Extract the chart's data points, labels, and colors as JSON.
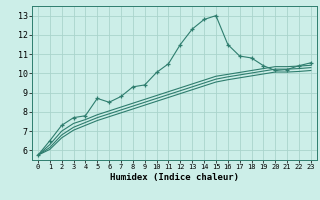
{
  "title": "",
  "xlabel": "Humidex (Indice chaleur)",
  "bg_color": "#cceee8",
  "grid_color": "#aad4cc",
  "line_color": "#2e7d6e",
  "xlim": [
    -0.5,
    23.5
  ],
  "ylim": [
    5.5,
    13.5
  ],
  "xticks": [
    0,
    1,
    2,
    3,
    4,
    5,
    6,
    7,
    8,
    9,
    10,
    11,
    12,
    13,
    14,
    15,
    16,
    17,
    18,
    19,
    20,
    21,
    22,
    23
  ],
  "yticks": [
    6,
    7,
    8,
    9,
    10,
    11,
    12,
    13
  ],
  "main_x": [
    0,
    1,
    2,
    3,
    4,
    5,
    6,
    7,
    8,
    9,
    10,
    11,
    12,
    13,
    14,
    15,
    16,
    17,
    18,
    19,
    20,
    21,
    22,
    23
  ],
  "main_y": [
    5.75,
    6.5,
    7.3,
    7.7,
    7.8,
    8.7,
    8.5,
    8.8,
    9.3,
    9.4,
    10.05,
    10.5,
    11.5,
    12.3,
    12.8,
    13.0,
    11.5,
    10.9,
    10.8,
    10.4,
    10.15,
    10.2,
    10.4,
    10.55
  ],
  "line2_x": [
    0,
    1,
    2,
    3,
    4,
    5,
    6,
    7,
    8,
    9,
    10,
    11,
    12,
    13,
    14,
    15,
    16,
    17,
    18,
    19,
    20,
    21,
    22,
    23
  ],
  "line2_y": [
    5.75,
    6.3,
    7.0,
    7.4,
    7.6,
    7.85,
    8.05,
    8.25,
    8.45,
    8.65,
    8.85,
    9.05,
    9.25,
    9.45,
    9.65,
    9.85,
    9.95,
    10.05,
    10.15,
    10.25,
    10.35,
    10.35,
    10.38,
    10.42
  ],
  "line3_x": [
    0,
    1,
    2,
    3,
    4,
    5,
    6,
    7,
    8,
    9,
    10,
    11,
    12,
    13,
    14,
    15,
    16,
    17,
    18,
    19,
    20,
    21,
    22,
    23
  ],
  "line3_y": [
    5.75,
    6.15,
    6.8,
    7.2,
    7.45,
    7.7,
    7.9,
    8.1,
    8.3,
    8.5,
    8.7,
    8.9,
    9.1,
    9.3,
    9.5,
    9.7,
    9.82,
    9.92,
    10.02,
    10.12,
    10.22,
    10.22,
    10.25,
    10.3
  ],
  "line4_x": [
    0,
    1,
    2,
    3,
    4,
    5,
    6,
    7,
    8,
    9,
    10,
    11,
    12,
    13,
    14,
    15,
    16,
    17,
    18,
    19,
    20,
    21,
    22,
    23
  ],
  "line4_y": [
    5.75,
    6.05,
    6.65,
    7.05,
    7.3,
    7.55,
    7.75,
    7.95,
    8.15,
    8.35,
    8.55,
    8.75,
    8.95,
    9.15,
    9.35,
    9.55,
    9.67,
    9.77,
    9.87,
    9.97,
    10.07,
    10.07,
    10.1,
    10.15
  ]
}
